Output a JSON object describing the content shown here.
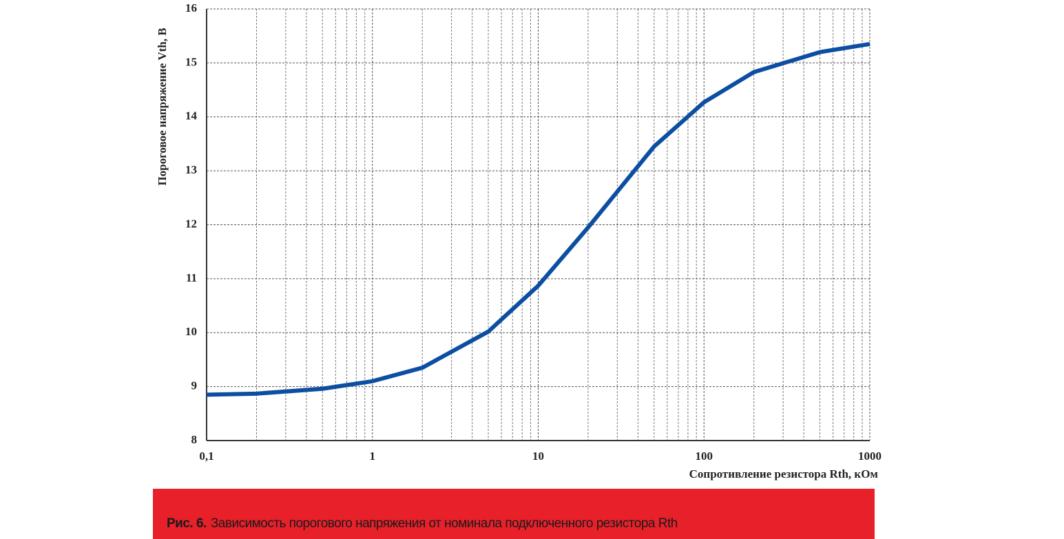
{
  "chart_data": {
    "type": "line",
    "x_label": "Сопротивление резистора Rth, кОм",
    "y_label": "Пороговое напряжение Vth, В",
    "x": [
      0.1,
      0.2,
      0.5,
      1,
      2,
      5,
      10,
      20,
      50,
      100,
      200,
      500,
      1000
    ],
    "series": [
      {
        "color": "#0b4ea2",
        "values": [
          8.85,
          8.87,
          8.96,
          9.1,
          9.35,
          10.02,
          10.87,
          11.95,
          13.45,
          14.27,
          14.83,
          15.2,
          15.35
        ]
      }
    ],
    "xlim": [
      0.1,
      1000
    ],
    "xticks": [
      {
        "value": 0.1,
        "label": "0,1"
      },
      1,
      10,
      100,
      1000
    ],
    "x_log": true,
    "ylim": [
      8,
      16
    ],
    "yticks": [
      8,
      9,
      10,
      11,
      12,
      13,
      14,
      15,
      16
    ],
    "grid": true
  },
  "caption": {
    "label": "Рис. 6.",
    "text": "Зависимость порогового напряжения от номинала подключенного резистора Rth"
  }
}
